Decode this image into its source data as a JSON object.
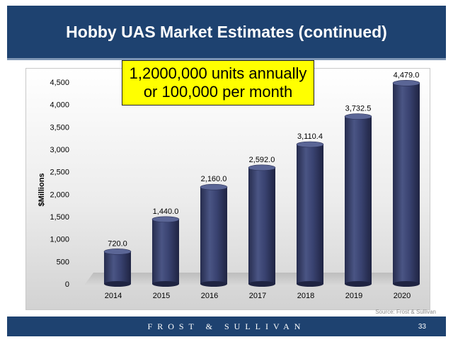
{
  "header": {
    "title": "Hobby UAS Market Estimates (continued)"
  },
  "callout": {
    "line1": "1,2000,000 units annually",
    "line2": "or 100,000 per month"
  },
  "source_note": "Source: Frost & Sullivan",
  "footer": {
    "brand": "FROST & SULLIVAN",
    "page_number": "33"
  },
  "colors": {
    "header_bg": "#1e4270",
    "bar": "#363e6a",
    "callout_bg": "#ffff00"
  },
  "chart_data": {
    "type": "bar",
    "style": "3d-cylinder",
    "categories": [
      "2014",
      "2015",
      "2016",
      "2017",
      "2018",
      "2019",
      "2020"
    ],
    "values": [
      720.0,
      1440.0,
      2160.0,
      2592.0,
      3110.4,
      3732.5,
      4479.0
    ],
    "value_labels": [
      "720.0",
      "1,440.0",
      "2,160.0",
      "2,592.0",
      "3,110.4",
      "3,732.5",
      "4,479.0"
    ],
    "ylabel": "$Millions",
    "xlabel": "",
    "ylim": [
      0,
      4500
    ],
    "yticks": [
      0,
      500,
      1000,
      1500,
      2000,
      2500,
      3000,
      3500,
      4000,
      4500
    ],
    "ytick_labels": [
      "0",
      "500",
      "1,000",
      "1,500",
      "2,000",
      "2,500",
      "3,000",
      "3,500",
      "4,000",
      "4,500"
    ],
    "grid": false,
    "legend": "none"
  }
}
